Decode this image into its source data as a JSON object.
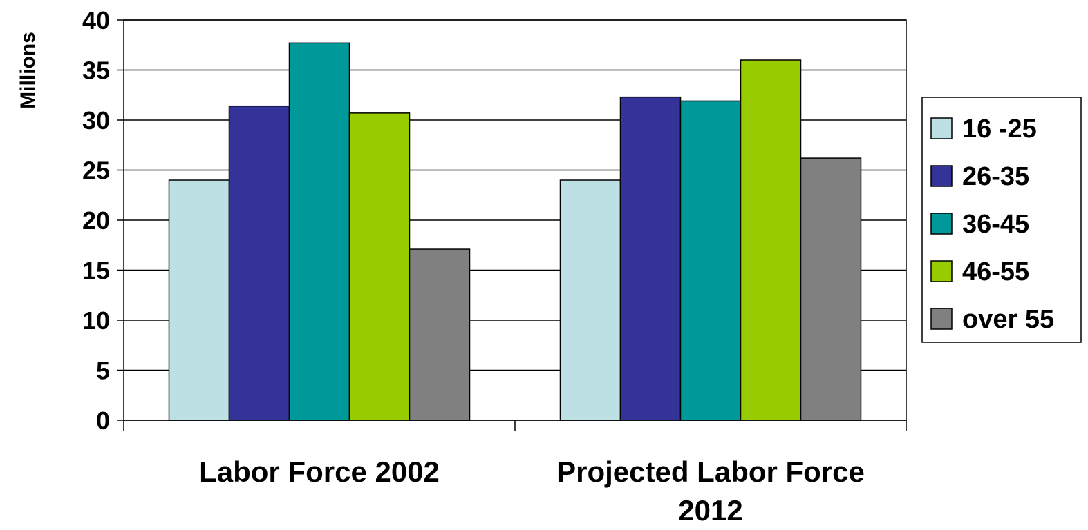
{
  "chart_data": {
    "type": "bar",
    "title": "",
    "xlabel": "",
    "ylabel": "Millions",
    "ylim": [
      0,
      40
    ],
    "yticks": [
      0,
      5,
      10,
      15,
      20,
      25,
      30,
      35,
      40
    ],
    "grid": true,
    "legend_position": "right",
    "categories": [
      [
        "Labor Force 2002"
      ],
      [
        "Projected Labor Force",
        "2012"
      ]
    ],
    "series": [
      {
        "name": "16 -25",
        "color": "#bde0e4",
        "values": [
          24.0,
          24.0
        ]
      },
      {
        "name": "26-35",
        "color": "#333399",
        "values": [
          31.4,
          32.3
        ]
      },
      {
        "name": "36-45",
        "color": "#009999",
        "values": [
          37.7,
          31.9
        ]
      },
      {
        "name": "46-55",
        "color": "#99cc00",
        "values": [
          30.7,
          36.0
        ]
      },
      {
        "name": "over 55",
        "color": "#808080",
        "values": [
          17.1,
          26.2
        ]
      }
    ]
  }
}
